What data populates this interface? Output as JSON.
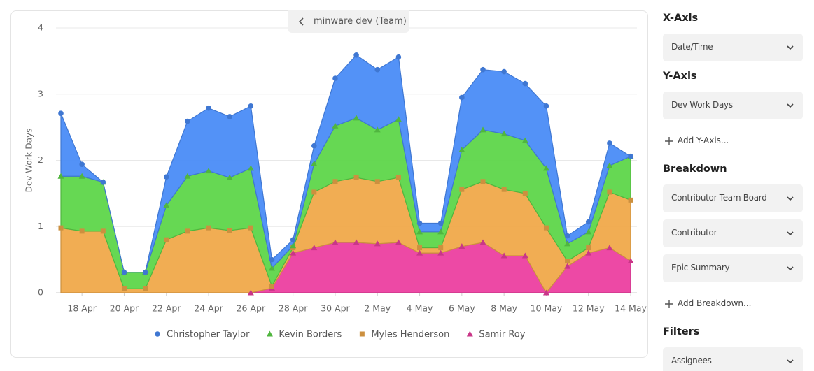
{
  "header": {
    "team": "minware dev (Team)"
  },
  "chart_data": {
    "type": "stacked-area",
    "y_label": "Dev Work Days",
    "categories": [
      null,
      "18 Apr",
      null,
      "20 Apr",
      null,
      "22 Apr",
      null,
      "24 Apr",
      null,
      "26 Apr",
      null,
      "28 Apr",
      null,
      "30 Apr",
      null,
      "2 May",
      null,
      "4 May",
      null,
      "6 May",
      null,
      "8 May",
      null,
      "10 May",
      null,
      "12 May",
      null,
      "14 May"
    ],
    "ylim": [
      0,
      4
    ],
    "yticks": [
      0,
      1,
      2,
      3,
      4
    ],
    "grid": true,
    "legend": "bottom",
    "series": [
      {
        "name": "Christopher Taylor",
        "color": "#4a8cf7",
        "marker": "circle",
        "values": [
          0.95,
          0.18,
          0,
          0,
          0,
          0.43,
          0.83,
          0.95,
          0.92,
          0.94,
          0.13,
          0.09,
          0.27,
          0.72,
          0.95,
          0.91,
          0.94,
          0.13,
          0.13,
          0.79,
          0.91,
          0.94,
          0.86,
          0.94,
          0.12,
          0.15,
          0.34,
          0
        ]
      },
      {
        "name": "Kevin Borders",
        "color": "#5ed64a",
        "marker": "triangle",
        "values": [
          0.78,
          0.83,
          0.74,
          0.25,
          0.25,
          0.52,
          0.83,
          0.86,
          0.8,
          0.9,
          0.27,
          0.03,
          0.43,
          0.84,
          0.9,
          0.78,
          0.88,
          0.24,
          0.24,
          0.6,
          0.78,
          0.84,
          0.8,
          0.9,
          0.26,
          0.24,
          0.4,
          0.66
        ]
      },
      {
        "name": "Myles Henderson",
        "color": "#f0a94a",
        "marker": "square",
        "values": [
          0.98,
          0.93,
          0.93,
          0.06,
          0.06,
          0.8,
          0.93,
          0.98,
          0.94,
          0.98,
          0.03,
          0.08,
          0.84,
          0.92,
          0.98,
          0.94,
          0.98,
          0.08,
          0.08,
          0.86,
          0.92,
          1.0,
          0.94,
          0.98,
          0.08,
          0.08,
          0.84,
          0.92
        ]
      },
      {
        "name": "Samir Roy",
        "color": "#ec3fa0",
        "marker": "triangle",
        "values": [
          null,
          null,
          null,
          null,
          null,
          null,
          null,
          null,
          null,
          0,
          0.07,
          0.6,
          0.68,
          0.76,
          0.76,
          0.74,
          0.76,
          0.6,
          0.6,
          0.7,
          0.76,
          0.56,
          0.56,
          0,
          0.4,
          0.6,
          0.68,
          0.48
        ]
      }
    ]
  },
  "sidebar": [
    {
      "title": "X-Axis",
      "dropdowns": [
        "Date/Time"
      ]
    },
    {
      "title": "Y-Axis",
      "dropdowns": [
        "Dev Work Days"
      ],
      "add": "Add Y-Axis..."
    },
    {
      "title": "Breakdown",
      "dropdowns": [
        "Contributor Team Board",
        "Contributor",
        "Epic Summary"
      ],
      "add": "Add Breakdown..."
    },
    {
      "title": "Filters",
      "dropdowns": [
        "Assignees"
      ]
    }
  ]
}
